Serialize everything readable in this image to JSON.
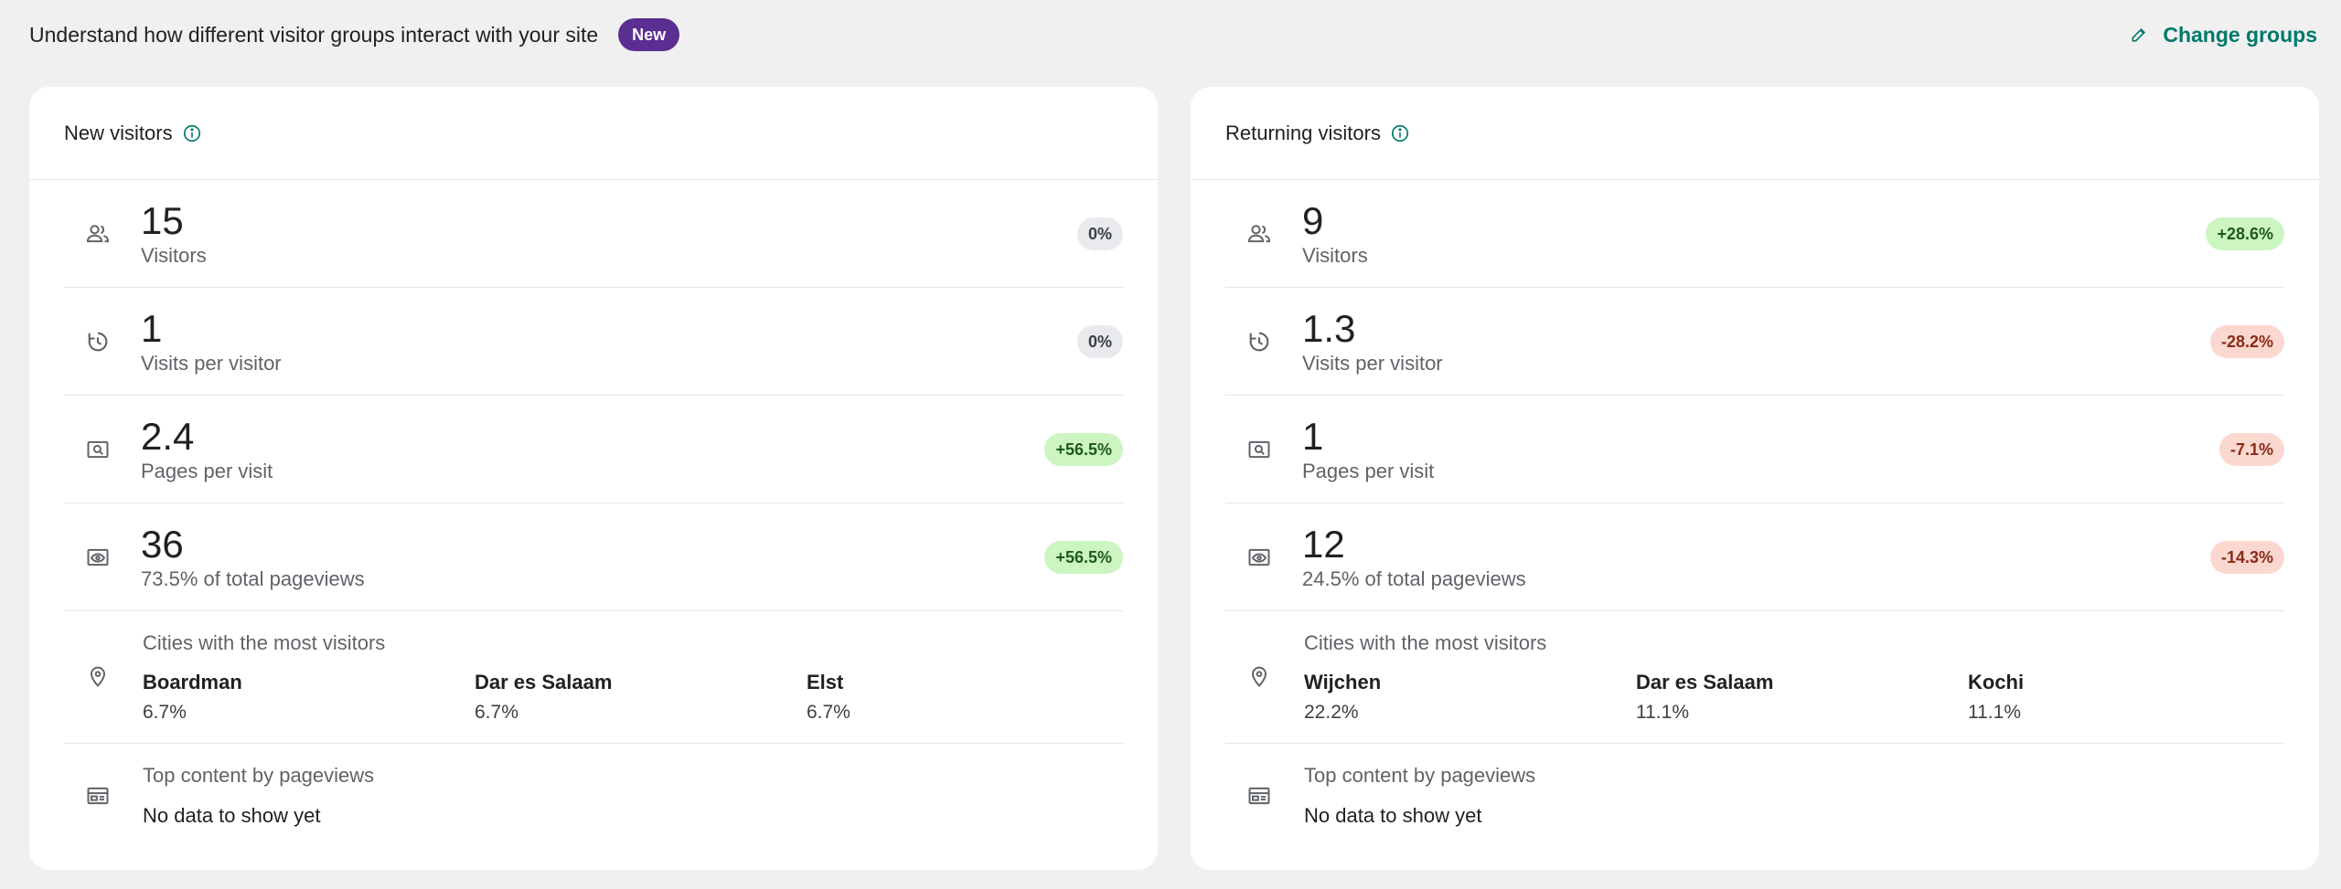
{
  "header": {
    "subtitle": "Understand how different visitor groups interact with your site",
    "badge": "New",
    "change_groups": "Change groups"
  },
  "colors": {
    "accent": "#00796b",
    "badge": "#5b2e91",
    "up": "#ccf5c2",
    "down": "#fbd8cf",
    "neutral": "#e8eaed"
  },
  "cards": [
    {
      "title": "New visitors",
      "metrics": [
        {
          "icon": "people-icon",
          "value": "15",
          "label": "Visitors",
          "change": "0%",
          "trend": "neutral"
        },
        {
          "icon": "history-icon",
          "value": "1",
          "label": "Visits per visitor",
          "change": "0%",
          "trend": "neutral"
        },
        {
          "icon": "page-search-icon",
          "value": "2.4",
          "label": "Pages per visit",
          "change": "+56.5%",
          "trend": "up"
        },
        {
          "icon": "eye-icon",
          "value": "36",
          "label": "73.5% of total pageviews",
          "change": "+56.5%",
          "trend": "up"
        }
      ],
      "cities_title": "Cities with the most visitors",
      "cities": [
        {
          "name": "Boardman",
          "pct": "6.7%"
        },
        {
          "name": "Dar es Salaam",
          "pct": "6.7%"
        },
        {
          "name": "Elst",
          "pct": "6.7%"
        }
      ],
      "content_title": "Top content by pageviews",
      "content_empty": "No data to show yet"
    },
    {
      "title": "Returning visitors",
      "metrics": [
        {
          "icon": "people-icon",
          "value": "9",
          "label": "Visitors",
          "change": "+28.6%",
          "trend": "up"
        },
        {
          "icon": "history-icon",
          "value": "1.3",
          "label": "Visits per visitor",
          "change": "-28.2%",
          "trend": "down"
        },
        {
          "icon": "page-search-icon",
          "value": "1",
          "label": "Pages per visit",
          "change": "-7.1%",
          "trend": "down"
        },
        {
          "icon": "eye-icon",
          "value": "12",
          "label": "24.5% of total pageviews",
          "change": "-14.3%",
          "trend": "down"
        }
      ],
      "cities_title": "Cities with the most visitors",
      "cities": [
        {
          "name": "Wijchen",
          "pct": "22.2%"
        },
        {
          "name": "Dar es Salaam",
          "pct": "11.1%"
        },
        {
          "name": "Kochi",
          "pct": "11.1%"
        }
      ],
      "content_title": "Top content by pageviews",
      "content_empty": "No data to show yet"
    }
  ]
}
